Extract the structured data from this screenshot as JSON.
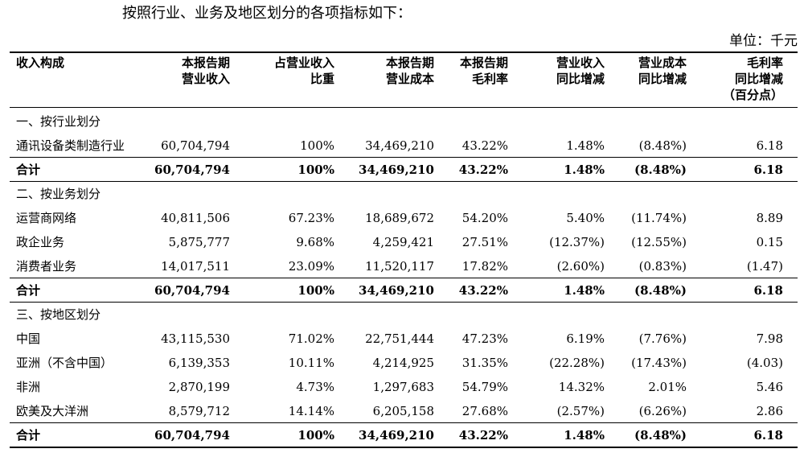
{
  "intro": "按照行业、业务及地区划分的各项指标如下：",
  "unit": "单位：千元",
  "headers": [
    [
      "收入构成"
    ],
    [
      "本报告期",
      "营业收入"
    ],
    [
      "占营业收入",
      "比重"
    ],
    [
      "本报告期",
      "营业成本"
    ],
    [
      "本报告期",
      "毛利率"
    ],
    [
      "营业收入",
      "同比增减"
    ],
    [
      "营业成本",
      "同比增减"
    ],
    [
      "毛利率",
      "同比增减",
      "（百分点）"
    ]
  ],
  "sections": [
    {
      "title": "一、按行业划分",
      "rows": [
        [
          "通讯设备类制造行业",
          "60,704,794",
          "100%",
          "34,469,210",
          "43.22%",
          "1.48%",
          "(8.48%)",
          "6.18"
        ]
      ],
      "total": [
        "合计",
        "60,704,794",
        "100%",
        "34,469,210",
        "43.22%",
        "1.48%",
        "(8.48%)",
        "6.18"
      ]
    },
    {
      "title": "二、按业务划分",
      "rows": [
        [
          "运营商网络",
          "40,811,506",
          "67.23%",
          "18,689,672",
          "54.20%",
          "5.40%",
          "(11.74%)",
          "8.89"
        ],
        [
          "政企业务",
          "5,875,777",
          "9.68%",
          "4,259,421",
          "27.51%",
          "(12.37%)",
          "(12.55%)",
          "0.15"
        ],
        [
          "消费者业务",
          "14,017,511",
          "23.09%",
          "11,520,117",
          "17.82%",
          "(2.60%)",
          "(0.83%)",
          "(1.47)"
        ]
      ],
      "total": [
        "合计",
        "60,704,794",
        "100%",
        "34,469,210",
        "43.22%",
        "1.48%",
        "(8.48%)",
        "6.18"
      ]
    },
    {
      "title": "三、按地区划分",
      "rows": [
        [
          "中国",
          "43,115,530",
          "71.02%",
          "22,751,444",
          "47.23%",
          "6.19%",
          "(7.76%)",
          "7.98"
        ],
        [
          "亚洲（不含中国）",
          "6,139,353",
          "10.11%",
          "4,214,925",
          "31.35%",
          "(22.28%)",
          "(17.43%)",
          "(4.03)"
        ],
        [
          "非洲",
          "2,870,199",
          "4.73%",
          "1,297,683",
          "54.79%",
          "14.32%",
          "2.01%",
          "5.46"
        ],
        [
          "欧美及大洋洲",
          "8,579,712",
          "14.14%",
          "6,205,158",
          "27.68%",
          "(2.57%)",
          "(6.26%)",
          "2.86"
        ]
      ],
      "total": [
        "合计",
        "60,704,794",
        "100%",
        "34,469,210",
        "43.22%",
        "1.48%",
        "(8.48%)",
        "6.18"
      ]
    }
  ]
}
